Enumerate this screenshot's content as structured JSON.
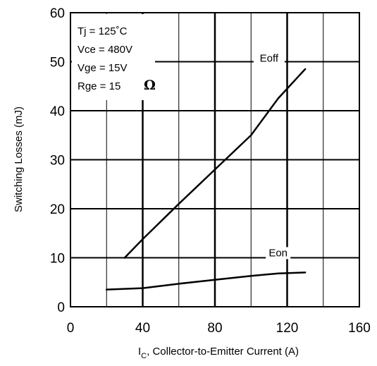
{
  "chart_data": {
    "type": "line",
    "xlabel_main": "I",
    "xlabel_sub": "C",
    "xlabel_rest": ", Collector-to-Emitter Current (A)",
    "ylabel": "Switching Losses (mJ)",
    "xlim": [
      0,
      160
    ],
    "ylim": [
      0,
      60
    ],
    "x_ticks": [
      0,
      40,
      80,
      120,
      160
    ],
    "x_tick_labels": [
      "0",
      "40",
      "80",
      "120",
      "160"
    ],
    "y_ticks": [
      0,
      10,
      20,
      30,
      40,
      50,
      60
    ],
    "y_tick_labels": [
      "0",
      "10",
      "20",
      "30",
      "40",
      "50",
      "60"
    ],
    "x_gridlines": [
      20,
      40,
      60,
      80,
      100,
      120,
      140
    ],
    "y_gridlines": [
      10,
      20,
      30,
      40,
      50
    ],
    "grid": true,
    "conditions": [
      "Tj = 125˚C",
      "Vce = 480V",
      "Vge = 15V",
      "Rge = 15"
    ],
    "conditions_symbol": "Ω",
    "series": [
      {
        "name": "Eoff",
        "x": [
          30,
          40,
          60,
          80,
          100,
          115,
          130
        ],
        "y": [
          10,
          13.8,
          21,
          28,
          35,
          42.5,
          48.5
        ]
      },
      {
        "name": "Eon",
        "x": [
          20,
          40,
          60,
          80,
          100,
          115,
          130
        ],
        "y": [
          3.5,
          3.8,
          4.7,
          5.5,
          6.3,
          6.8,
          7
        ]
      }
    ],
    "series_labels": [
      {
        "name": "Eoff",
        "at": [
          110,
          50
        ]
      },
      {
        "name": "Eon",
        "at": [
          115,
          10.3
        ]
      }
    ]
  }
}
